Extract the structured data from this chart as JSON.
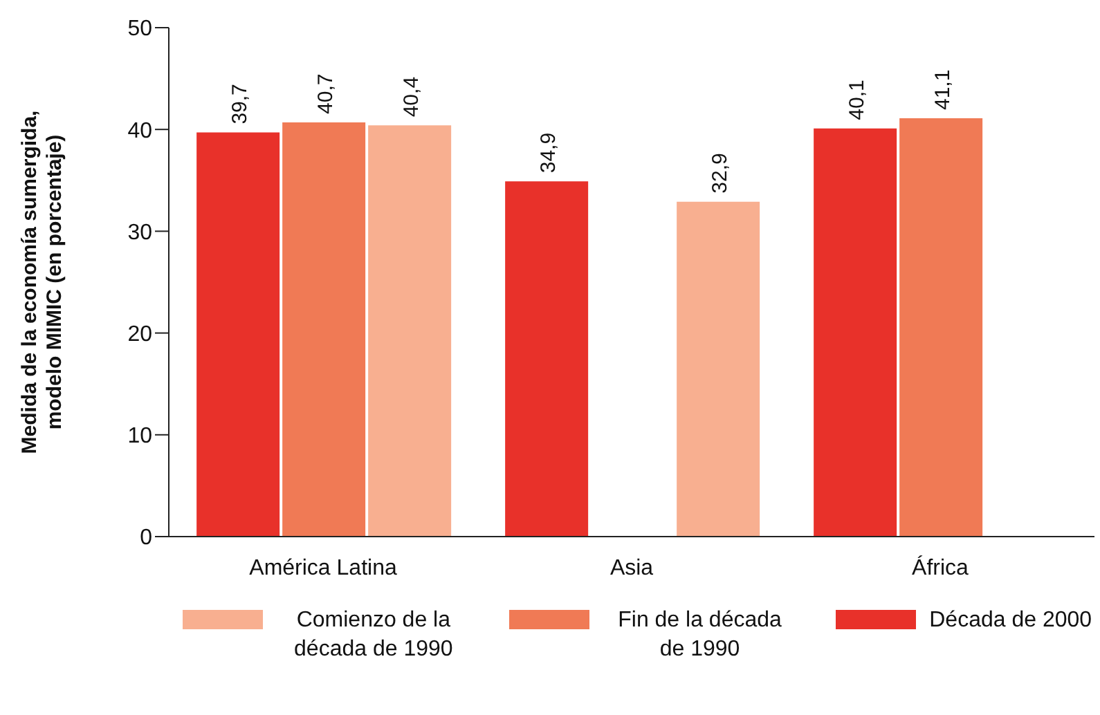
{
  "chart_data": {
    "type": "bar",
    "ylabel": "Medida de la economía sumergida, modelo MIMIC (en porcentaje)",
    "categories": [
      "América Latina",
      "Asia",
      "África"
    ],
    "series": [
      {
        "name": "Década de 2000",
        "color": "#e8312a",
        "values": [
          39.7,
          34.9,
          40.1
        ],
        "value_labels": [
          "39,7",
          "34,9",
          "40,1"
        ]
      },
      {
        "name": "Fin de la década de 1990",
        "color": "#f07a55",
        "values": [
          40.7,
          null,
          41.1
        ],
        "value_labels": [
          "40,7",
          null,
          "41,1"
        ]
      },
      {
        "name": "Comienzo de la década de 1990",
        "color": "#f8af90",
        "values": [
          40.4,
          32.9,
          null
        ],
        "value_labels": [
          "40,4",
          "32,9",
          null
        ]
      }
    ],
    "ylim": [
      0,
      50
    ],
    "yticks": [
      0,
      10,
      20,
      30,
      40,
      50
    ],
    "grid": false,
    "legend": "bottom"
  }
}
